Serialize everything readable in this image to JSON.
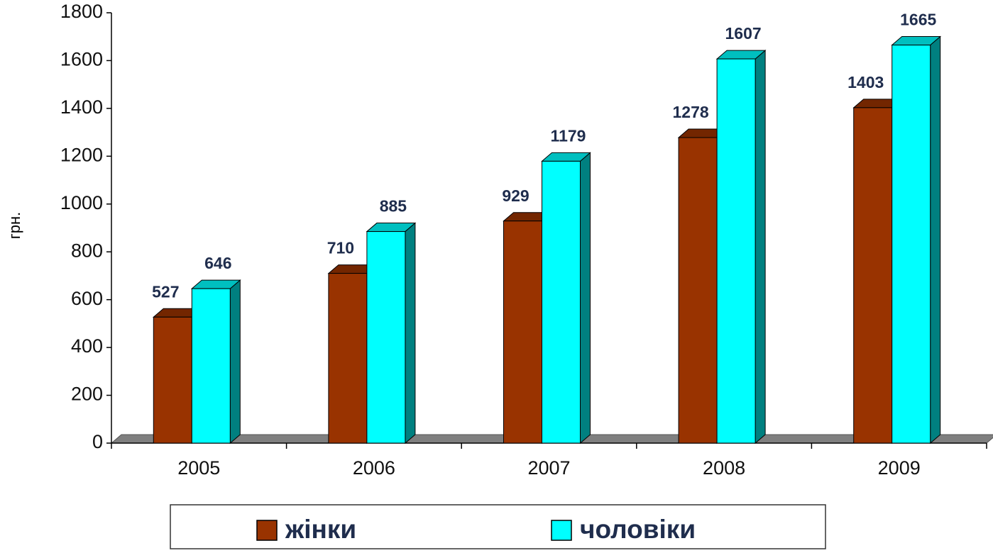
{
  "chart_data": {
    "type": "bar3d",
    "ylabel": "грн.",
    "categories": [
      "2005",
      "2006",
      "2007",
      "2008",
      "2009"
    ],
    "series": [
      {
        "name": "жінки",
        "color": "#993300",
        "values": [
          527,
          710,
          929,
          1278,
          1403
        ]
      },
      {
        "name": "чоловіки",
        "color": "#00ffff",
        "values": [
          646,
          885,
          1179,
          1607,
          1665
        ]
      }
    ],
    "ylim": [
      0,
      1800
    ],
    "yticks": [
      0,
      200,
      400,
      600,
      800,
      1000,
      1200,
      1400,
      1600,
      1800
    ]
  }
}
